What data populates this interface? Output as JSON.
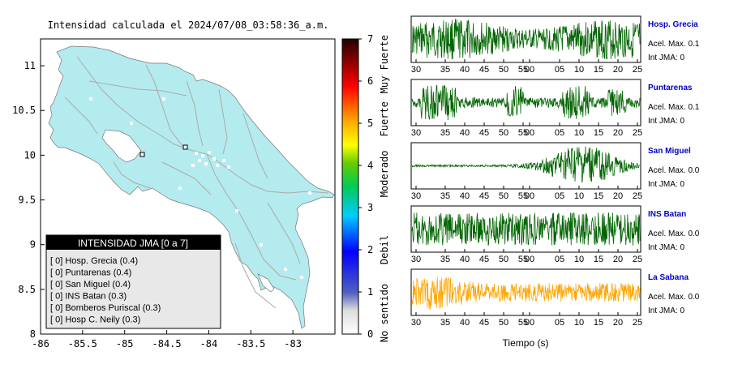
{
  "map": {
    "title": "Intensidad calculada el 2024/07/08_03:58:36_a.m.",
    "x_ticks": [
      "-86",
      "-85.5",
      "-85",
      "-84.5",
      "-84",
      "-83.5",
      "-83"
    ],
    "y_ticks": [
      "11",
      "10.5",
      "10",
      "9.5",
      "9",
      "8.5",
      "8"
    ],
    "xlim": [
      -86,
      -82.5
    ],
    "ylim": [
      8,
      11.3
    ],
    "land_color": "#b4ebee",
    "road_color": "#aaaaaa"
  },
  "legend": {
    "title": "INTENSIDAD JMA [0 a 7]",
    "items": [
      "[ 0]  Hosp. Grecia (0.4)",
      "[ 0]  Puntarenas (0.4)",
      "[ 0]  San Miguel (0.4)",
      "[ 0]  INS Batan (0.3)",
      "[ 0]  Bomberos Puriscal (0.3)",
      "[ 0]  Hosp C. Neily (0.3)"
    ]
  },
  "colorbar": {
    "ticks": [
      "0",
      "1",
      "2",
      "3",
      "4",
      "5",
      "6",
      "7"
    ],
    "range": [
      0,
      7
    ],
    "category_labels": [
      "No sentido",
      "Debil",
      "Moderado",
      "Fuerte",
      "Muy Fuerte"
    ]
  },
  "chart_data": {
    "type": "line",
    "xlabel": "Tiempo (s)",
    "x_tick_labels": [
      "30",
      "35",
      "40",
      "45",
      "50",
      "55",
      "00",
      "05",
      "10",
      "15",
      "20",
      "25"
    ],
    "series": [
      {
        "name": "Hosp. Grecia",
        "accel_label": "Acel. Max. 0.1",
        "jma_label": "Int JMA: 0",
        "color": "#006400"
      },
      {
        "name": "Puntarenas",
        "accel_label": "Acel. Max. 0.1",
        "jma_label": "Int JMA: 0",
        "color": "#006400"
      },
      {
        "name": "San Miguel",
        "accel_label": "Acel. Max. 0.0",
        "jma_label": "Int JMA: 0",
        "color": "#006400"
      },
      {
        "name": "INS Batan",
        "accel_label": "Acel. Max. 0.0",
        "jma_label": "Int JMA: 0",
        "color": "#006400"
      },
      {
        "name": "La Sabana",
        "accel_label": "Acel. Max. 0.0",
        "jma_label": "Int JMA: 0",
        "color": "#ffa500"
      }
    ],
    "name_color": "#0000cc"
  }
}
